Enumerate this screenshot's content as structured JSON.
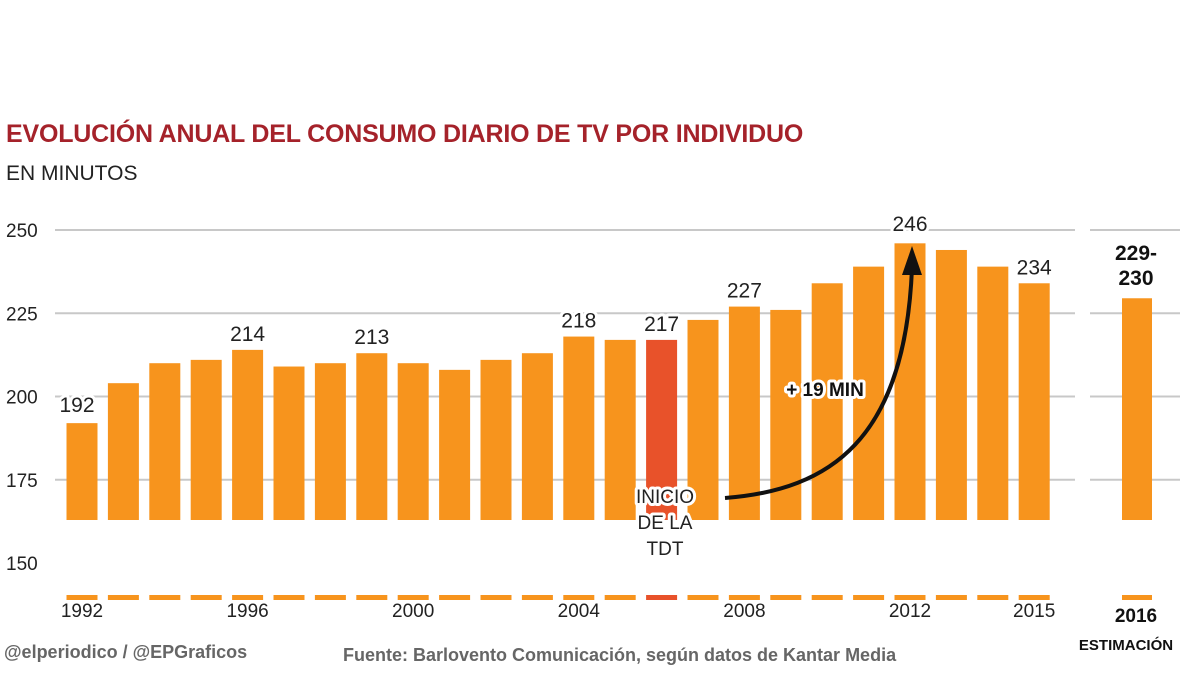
{
  "title": "EVOLUCIÓN ANUAL DEL CONSUMO DIARIO DE TV POR INDIVIDUO",
  "subtitle": "EN MINUTOS",
  "credit": "@elperiodico / @EPGraficos",
  "source": "Fuente: Barlovento Comunicación, según datos de Kantar Media",
  "chart_data": {
    "type": "bar",
    "title": "EVOLUCIÓN ANUAL DEL CONSUMO DIARIO DE TV POR INDIVIDUO",
    "ylabel": "EN MINUTOS",
    "ylim": [
      140,
      255
    ],
    "yticks": [
      150,
      175,
      200,
      225,
      250
    ],
    "grid": true,
    "categories": [
      1992,
      1993,
      1994,
      1995,
      1996,
      1997,
      1998,
      1999,
      2000,
      2001,
      2002,
      2003,
      2004,
      2005,
      2006,
      2007,
      2008,
      2009,
      2010,
      2011,
      2012,
      2013,
      2014,
      2015
    ],
    "values": [
      192,
      204,
      210,
      211,
      214,
      209,
      210,
      213,
      210,
      208,
      211,
      213,
      218,
      217,
      217,
      223,
      227,
      226,
      234,
      239,
      246,
      244,
      239,
      234
    ],
    "xtick_labels": [
      "1992",
      "1996",
      "2000",
      "2004",
      "2008",
      "2012",
      "2015"
    ],
    "data_labels": {
      "1992": "192",
      "1996": "214",
      "1999": "213",
      "2004": "218",
      "2006": "217",
      "2008": "227",
      "2012": "246",
      "2015": "234"
    },
    "highlight": {
      "year": 2006,
      "color": "#e8522a"
    },
    "bar_color": "#f7941d",
    "estimate": {
      "year_label": "2016",
      "sublabel": "ESTIMACIÓN",
      "value": 229.5,
      "label_lines": [
        "229-",
        "230"
      ]
    },
    "annotations": {
      "tdt_lines": [
        "INICIO",
        "DE LA",
        "TDT"
      ],
      "growth": "+ 19 MIN"
    }
  }
}
